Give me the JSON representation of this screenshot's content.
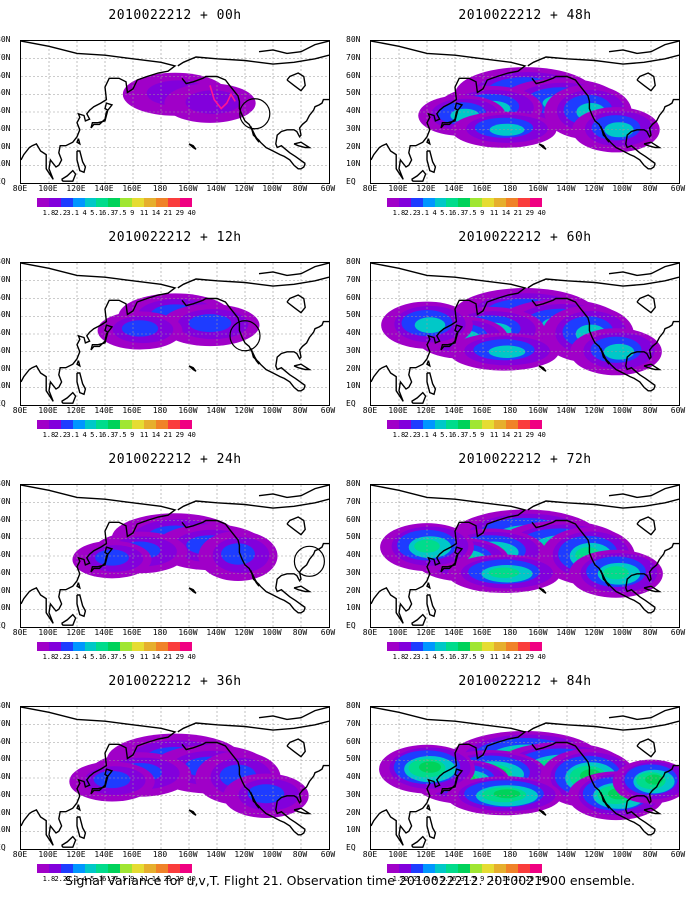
{
  "panels": [
    {
      "title": "2010022212 + 00h",
      "intensity": 0.15,
      "extent": 0.22,
      "circle_lon": -113,
      "circle_lat": 39
    },
    {
      "title": "2010022212 + 48h",
      "intensity": 0.45,
      "extent": 0.75,
      "circle_lon": null,
      "circle_lat": null
    },
    {
      "title": "2010022212 + 12h",
      "intensity": 0.25,
      "extent": 0.35,
      "circle_lon": -120,
      "circle_lat": 39
    },
    {
      "title": "2010022212 + 60h",
      "intensity": 0.55,
      "extent": 0.85,
      "circle_lon": null,
      "circle_lat": null
    },
    {
      "title": "2010022212 + 24h",
      "intensity": 0.35,
      "extent": 0.55,
      "circle_lon": -74,
      "circle_lat": 37
    },
    {
      "title": "2010022212 + 72h",
      "intensity": 0.65,
      "extent": 0.9,
      "circle_lon": null,
      "circle_lat": null
    },
    {
      "title": "2010022212 + 36h",
      "intensity": 0.4,
      "extent": 0.7,
      "circle_lon": null,
      "circle_lat": null
    },
    {
      "title": "2010022212 + 84h",
      "intensity": 0.75,
      "extent": 0.95,
      "circle_lon": null,
      "circle_lat": null
    }
  ],
  "latitude_labels": [
    "80N",
    "70N",
    "60N",
    "50N",
    "40N",
    "30N",
    "20N",
    "10N",
    "EQ"
  ],
  "longitude_labels": [
    "80E",
    "100E",
    "120E",
    "140E",
    "160E",
    "180",
    "160W",
    "140W",
    "120W",
    "100W",
    "80W",
    "60W"
  ],
  "colorbar": {
    "colors": [
      "#a000c8",
      "#8200dc",
      "#1e3cff",
      "#0096ff",
      "#00c8c8",
      "#00dc8c",
      "#00d25a",
      "#a0e632",
      "#e6dc32",
      "#e6af2d",
      "#f08228",
      "#fa3c3c",
      "#f00082"
    ],
    "labels": [
      "1.8",
      "2.2",
      "3.1",
      "4",
      "5.1",
      "6.3",
      "7.5",
      "9",
      "11",
      "14",
      "21",
      "29",
      "40"
    ]
  },
  "footer": "Signal Variance for u,v,T. Flight 21. Observation time 2010022212. 2010021900 ensemble."
}
